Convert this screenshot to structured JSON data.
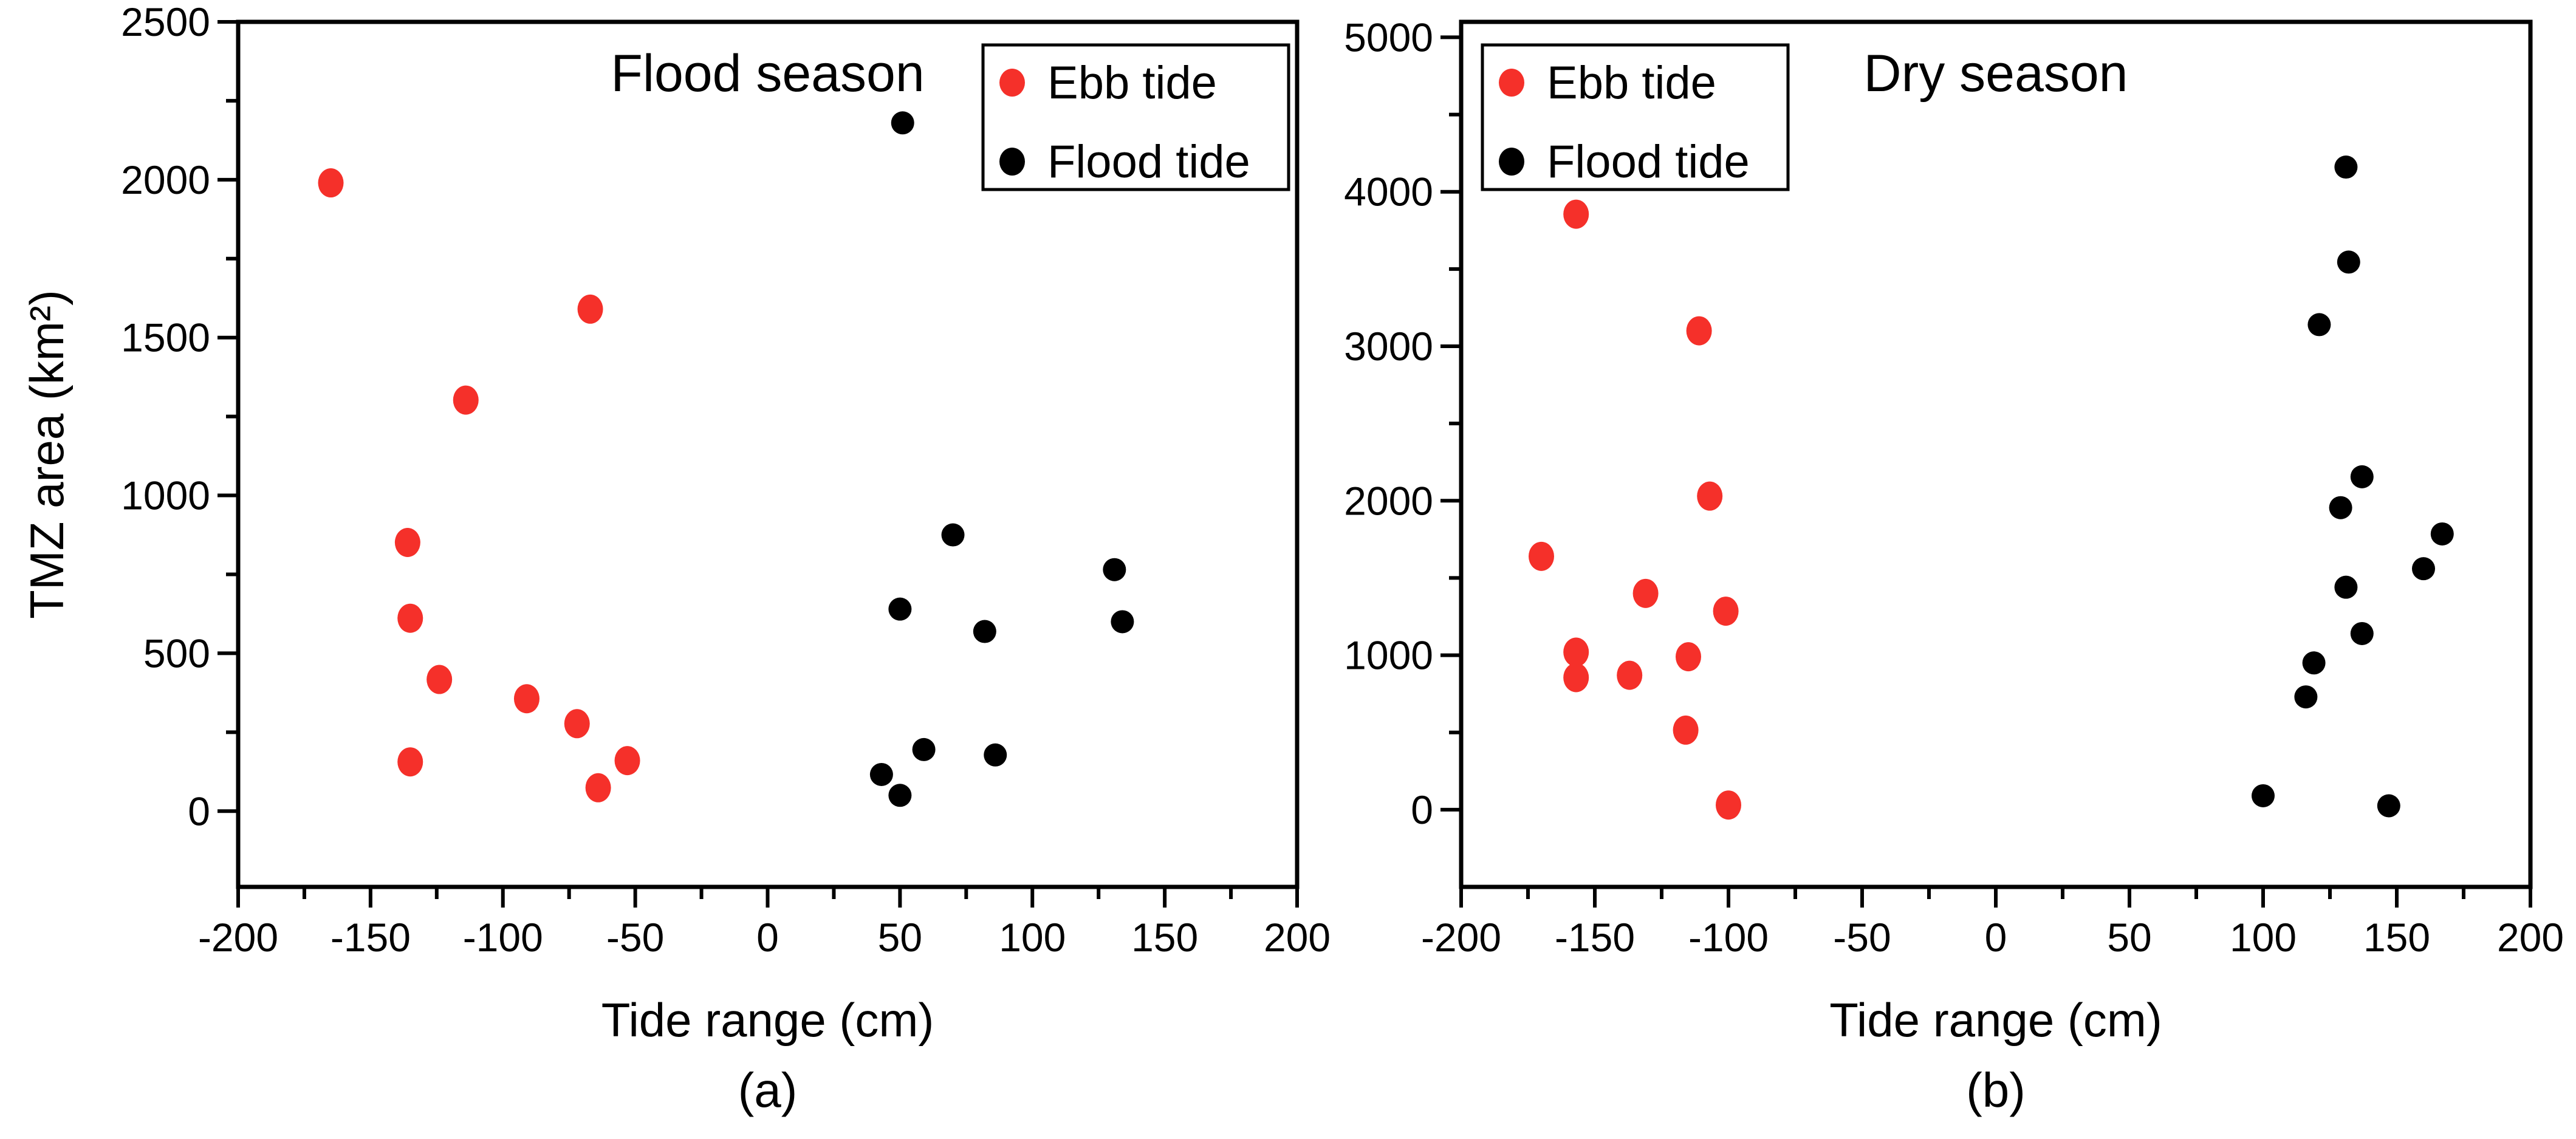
{
  "figure": {
    "background": "#ffffff",
    "description": "Two-panel scatter figure of TMZ area versus tide range for flood and dry seasons"
  },
  "chart_data": [
    {
      "id": "a",
      "type": "scatter",
      "title": "Flood season",
      "caption": "(a)",
      "xlabel": "Tide range (cm)",
      "ylabel": "TMZ area (km²)",
      "xlim": [
        -200,
        200
      ],
      "ylim": [
        -240,
        2500
      ],
      "xticks": [
        -200,
        -150,
        -100,
        -50,
        0,
        50,
        100,
        150,
        200
      ],
      "xtick_labels": [
        "-200",
        "-150",
        "-100",
        "-50",
        "0",
        "50",
        "100",
        "150",
        "200"
      ],
      "yticks": [
        0,
        500,
        1000,
        1500,
        2000,
        2500
      ],
      "ytick_labels": [
        "0",
        "500",
        "1000",
        "1500",
        "2000",
        "2500"
      ],
      "x_minor_step": 25,
      "y_minor_step": 250,
      "grid": false,
      "legend_position": "top-right",
      "series": [
        {
          "name": "Ebb tide",
          "color": "#f5302a",
          "points": [
            [
              -165,
              1990
            ],
            [
              -136,
              851
            ],
            [
              -135,
              611
            ],
            [
              -135,
              156
            ],
            [
              -124,
              417
            ],
            [
              -114,
              1302
            ],
            [
              -91,
              356
            ],
            [
              -72,
              277
            ],
            [
              -67,
              1590
            ],
            [
              -64,
              74
            ],
            [
              -53,
              160
            ]
          ]
        },
        {
          "name": "Flood tide",
          "color": "#000000",
          "points": [
            [
              51,
              2180
            ],
            [
              43,
              116
            ],
            [
              50,
              50
            ],
            [
              50,
              640
            ],
            [
              59,
              195
            ],
            [
              70,
              875
            ],
            [
              82,
              569
            ],
            [
              86,
              178
            ],
            [
              131,
              765
            ],
            [
              134,
              600
            ]
          ]
        }
      ]
    },
    {
      "id": "b",
      "type": "scatter",
      "title": "Dry season",
      "caption": "(b)",
      "xlabel": "Tide range (cm)",
      "ylabel": "",
      "xlim": [
        -200,
        200
      ],
      "ylim": [
        -500,
        5100
      ],
      "xticks": [
        -200,
        -150,
        -100,
        -50,
        0,
        50,
        100,
        150,
        200
      ],
      "xtick_labels": [
        "-200",
        "-150",
        "-100",
        "-50",
        "0",
        "50",
        "100",
        "150",
        "200"
      ],
      "yticks": [
        0,
        1000,
        2000,
        3000,
        4000,
        5000
      ],
      "ytick_labels": [
        "0",
        "1000",
        "2000",
        "3000",
        "4000",
        "5000"
      ],
      "x_minor_step": 25,
      "y_minor_step": 500,
      "grid": false,
      "legend_position": "top-left",
      "series": [
        {
          "name": "Ebb tide",
          "color": "#f5302a",
          "points": [
            [
              -170,
              1640
            ],
            [
              -157,
              3855
            ],
            [
              -157,
              1020
            ],
            [
              -157,
              855
            ],
            [
              -137,
              870
            ],
            [
              -131,
              1400
            ],
            [
              -116,
              515
            ],
            [
              -115,
              990
            ],
            [
              -111,
              3100
            ],
            [
              -107,
              2030
            ],
            [
              -101,
              1285
            ],
            [
              -100,
              30
            ]
          ]
        },
        {
          "name": "Flood tide",
          "color": "#000000",
          "points": [
            [
              100,
              90
            ],
            [
              116,
              730
            ],
            [
              119,
              950
            ],
            [
              121,
              3140
            ],
            [
              129,
              1955
            ],
            [
              131,
              1440
            ],
            [
              131,
              4160
            ],
            [
              132,
              3545
            ],
            [
              137,
              1140
            ],
            [
              137,
              2155
            ],
            [
              147,
              25
            ],
            [
              160,
              1560
            ],
            [
              167,
              1785
            ]
          ]
        }
      ]
    }
  ]
}
